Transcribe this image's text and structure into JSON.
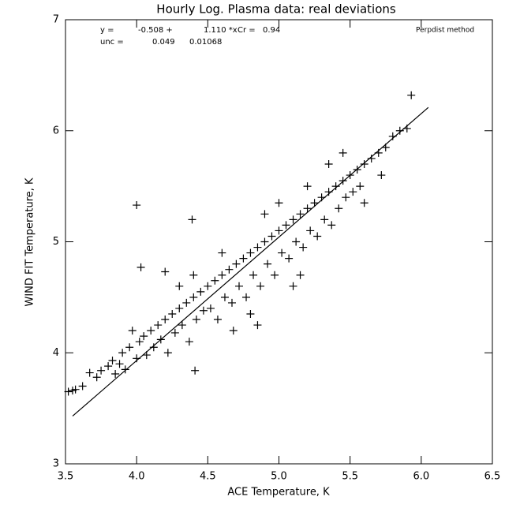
{
  "chart_data": {
    "type": "scatter",
    "title": "Hourly Log. Plasma data: real deviations",
    "x_label": "ACE Temperature, K",
    "y_label": "WIND FIT Temperature, K",
    "annotations": [
      "y =",
      "-0.508 +",
      "1.110 *x",
      "Cr =",
      "0.94",
      "unc =",
      "0.049",
      "0.01068",
      "Perpdist method"
    ],
    "xlim": [
      3.5,
      6.5
    ],
    "ylim": [
      3,
      7
    ],
    "xticks": [
      3.5,
      {
        "value": 4,
        "label": "4.0"
      },
      4.5,
      {
        "value": 5,
        "label": "5.0"
      },
      5.5,
      {
        "value": 6,
        "label": "6.0"
      },
      6.5
    ],
    "yticks": [
      3,
      4,
      5,
      6,
      7
    ],
    "color": "#000000",
    "series": [
      {
        "marker": "+",
        "x": [
          3.55,
          3.62,
          3.67,
          3.72,
          3.75,
          3.8,
          3.83,
          3.85,
          3.88,
          3.9,
          3.92,
          3.95,
          3.97,
          4.0,
          4.02,
          4.05,
          4.07,
          4.1,
          4.12,
          4.15,
          4.17,
          4.2,
          4.22,
          4.25,
          4.27,
          4.3,
          4.32,
          4.35,
          4.37,
          4.4,
          4.42,
          4.45,
          4.47,
          4.5,
          4.52,
          4.55,
          4.57,
          4.6,
          4.62,
          4.65,
          4.67,
          4.7,
          4.72,
          4.75,
          4.77,
          4.8,
          4.82,
          4.85,
          4.87,
          4.9,
          4.92,
          4.95,
          4.97,
          5.0,
          5.02,
          5.05,
          5.07,
          5.1,
          5.12,
          5.15,
          5.17,
          5.2,
          5.22,
          5.25,
          5.27,
          5.3,
          5.32,
          5.35,
          5.37,
          5.4,
          5.42,
          5.45,
          5.47,
          5.5,
          5.52,
          5.55,
          5.57,
          5.6,
          5.65,
          5.7,
          5.72,
          5.75,
          5.8,
          5.85,
          5.9,
          5.6,
          5.1,
          4.8,
          4.6,
          4.4,
          4.3,
          5.2,
          5.0,
          4.9,
          5.35,
          5.45,
          4.85,
          4.68,
          5.15,
          4.0,
          4.03,
          4.39,
          4.2,
          4.41,
          5.93,
          3.52,
          3.57
        ],
        "values": [
          3.66,
          3.7,
          3.82,
          3.78,
          3.84,
          3.88,
          3.93,
          3.81,
          3.9,
          4.0,
          3.85,
          4.05,
          4.2,
          3.95,
          4.1,
          4.15,
          3.98,
          4.2,
          4.05,
          4.25,
          4.12,
          4.3,
          4.0,
          4.35,
          4.18,
          4.4,
          4.25,
          4.45,
          4.1,
          4.5,
          4.3,
          4.55,
          4.38,
          4.6,
          4.4,
          4.65,
          4.3,
          4.7,
          4.5,
          4.75,
          4.45,
          4.8,
          4.6,
          4.85,
          4.5,
          4.9,
          4.7,
          4.95,
          4.6,
          5.0,
          4.8,
          5.05,
          4.7,
          5.1,
          4.9,
          5.15,
          4.85,
          5.2,
          5.0,
          5.25,
          4.95,
          5.3,
          5.1,
          5.35,
          5.05,
          5.4,
          5.2,
          5.45,
          5.15,
          5.5,
          5.3,
          5.55,
          5.4,
          5.6,
          5.45,
          5.65,
          5.5,
          5.7,
          5.75,
          5.8,
          5.6,
          5.85,
          5.95,
          6.0,
          6.02,
          5.35,
          4.6,
          4.35,
          4.9,
          4.7,
          4.6,
          5.5,
          5.35,
          5.25,
          5.7,
          5.8,
          4.25,
          4.2,
          4.7,
          5.33,
          4.77,
          5.2,
          4.73,
          3.84,
          6.32,
          3.65,
          3.67
        ]
      }
    ],
    "fit": {
      "x": [
        3.55,
        6.05
      ],
      "values": [
        3.43,
        6.21
      ]
    }
  }
}
